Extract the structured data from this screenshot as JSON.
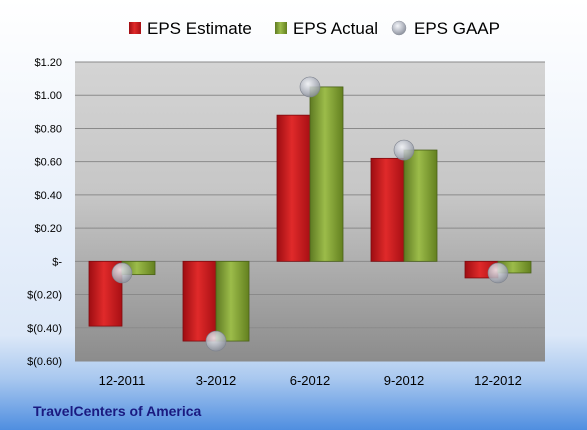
{
  "company": "TravelCenters of America",
  "colors": {
    "estimate": "#c8151b",
    "actual": "#7a9a2e",
    "gaap": "#b8bcc6"
  },
  "chart_data": {
    "type": "bar",
    "categories": [
      "12-2011",
      "3-2012",
      "6-2012",
      "9-2012",
      "12-2012"
    ],
    "series": [
      {
        "name": "EPS Estimate",
        "kind": "bar",
        "values": [
          -0.39,
          -0.48,
          0.88,
          0.62,
          -0.1
        ]
      },
      {
        "name": "EPS Actual",
        "kind": "bar",
        "values": [
          -0.08,
          -0.48,
          1.05,
          0.67,
          -0.07
        ]
      },
      {
        "name": "EPS GAAP",
        "kind": "marker",
        "values": [
          -0.07,
          -0.48,
          1.05,
          0.67,
          -0.07
        ]
      }
    ],
    "ylim": [
      -0.6,
      1.2
    ],
    "yticks": [
      1.2,
      1.0,
      0.8,
      0.6,
      0.4,
      0.2,
      0,
      -0.2,
      -0.4,
      -0.6
    ],
    "ytick_labels": [
      "$1.20",
      "$1.00",
      "$0.80",
      "$0.60",
      "$0.40",
      "$0.20",
      "$-",
      "$(0.20)",
      "$(0.40)",
      "$(0.60)"
    ],
    "grid": true,
    "legend": "top"
  }
}
